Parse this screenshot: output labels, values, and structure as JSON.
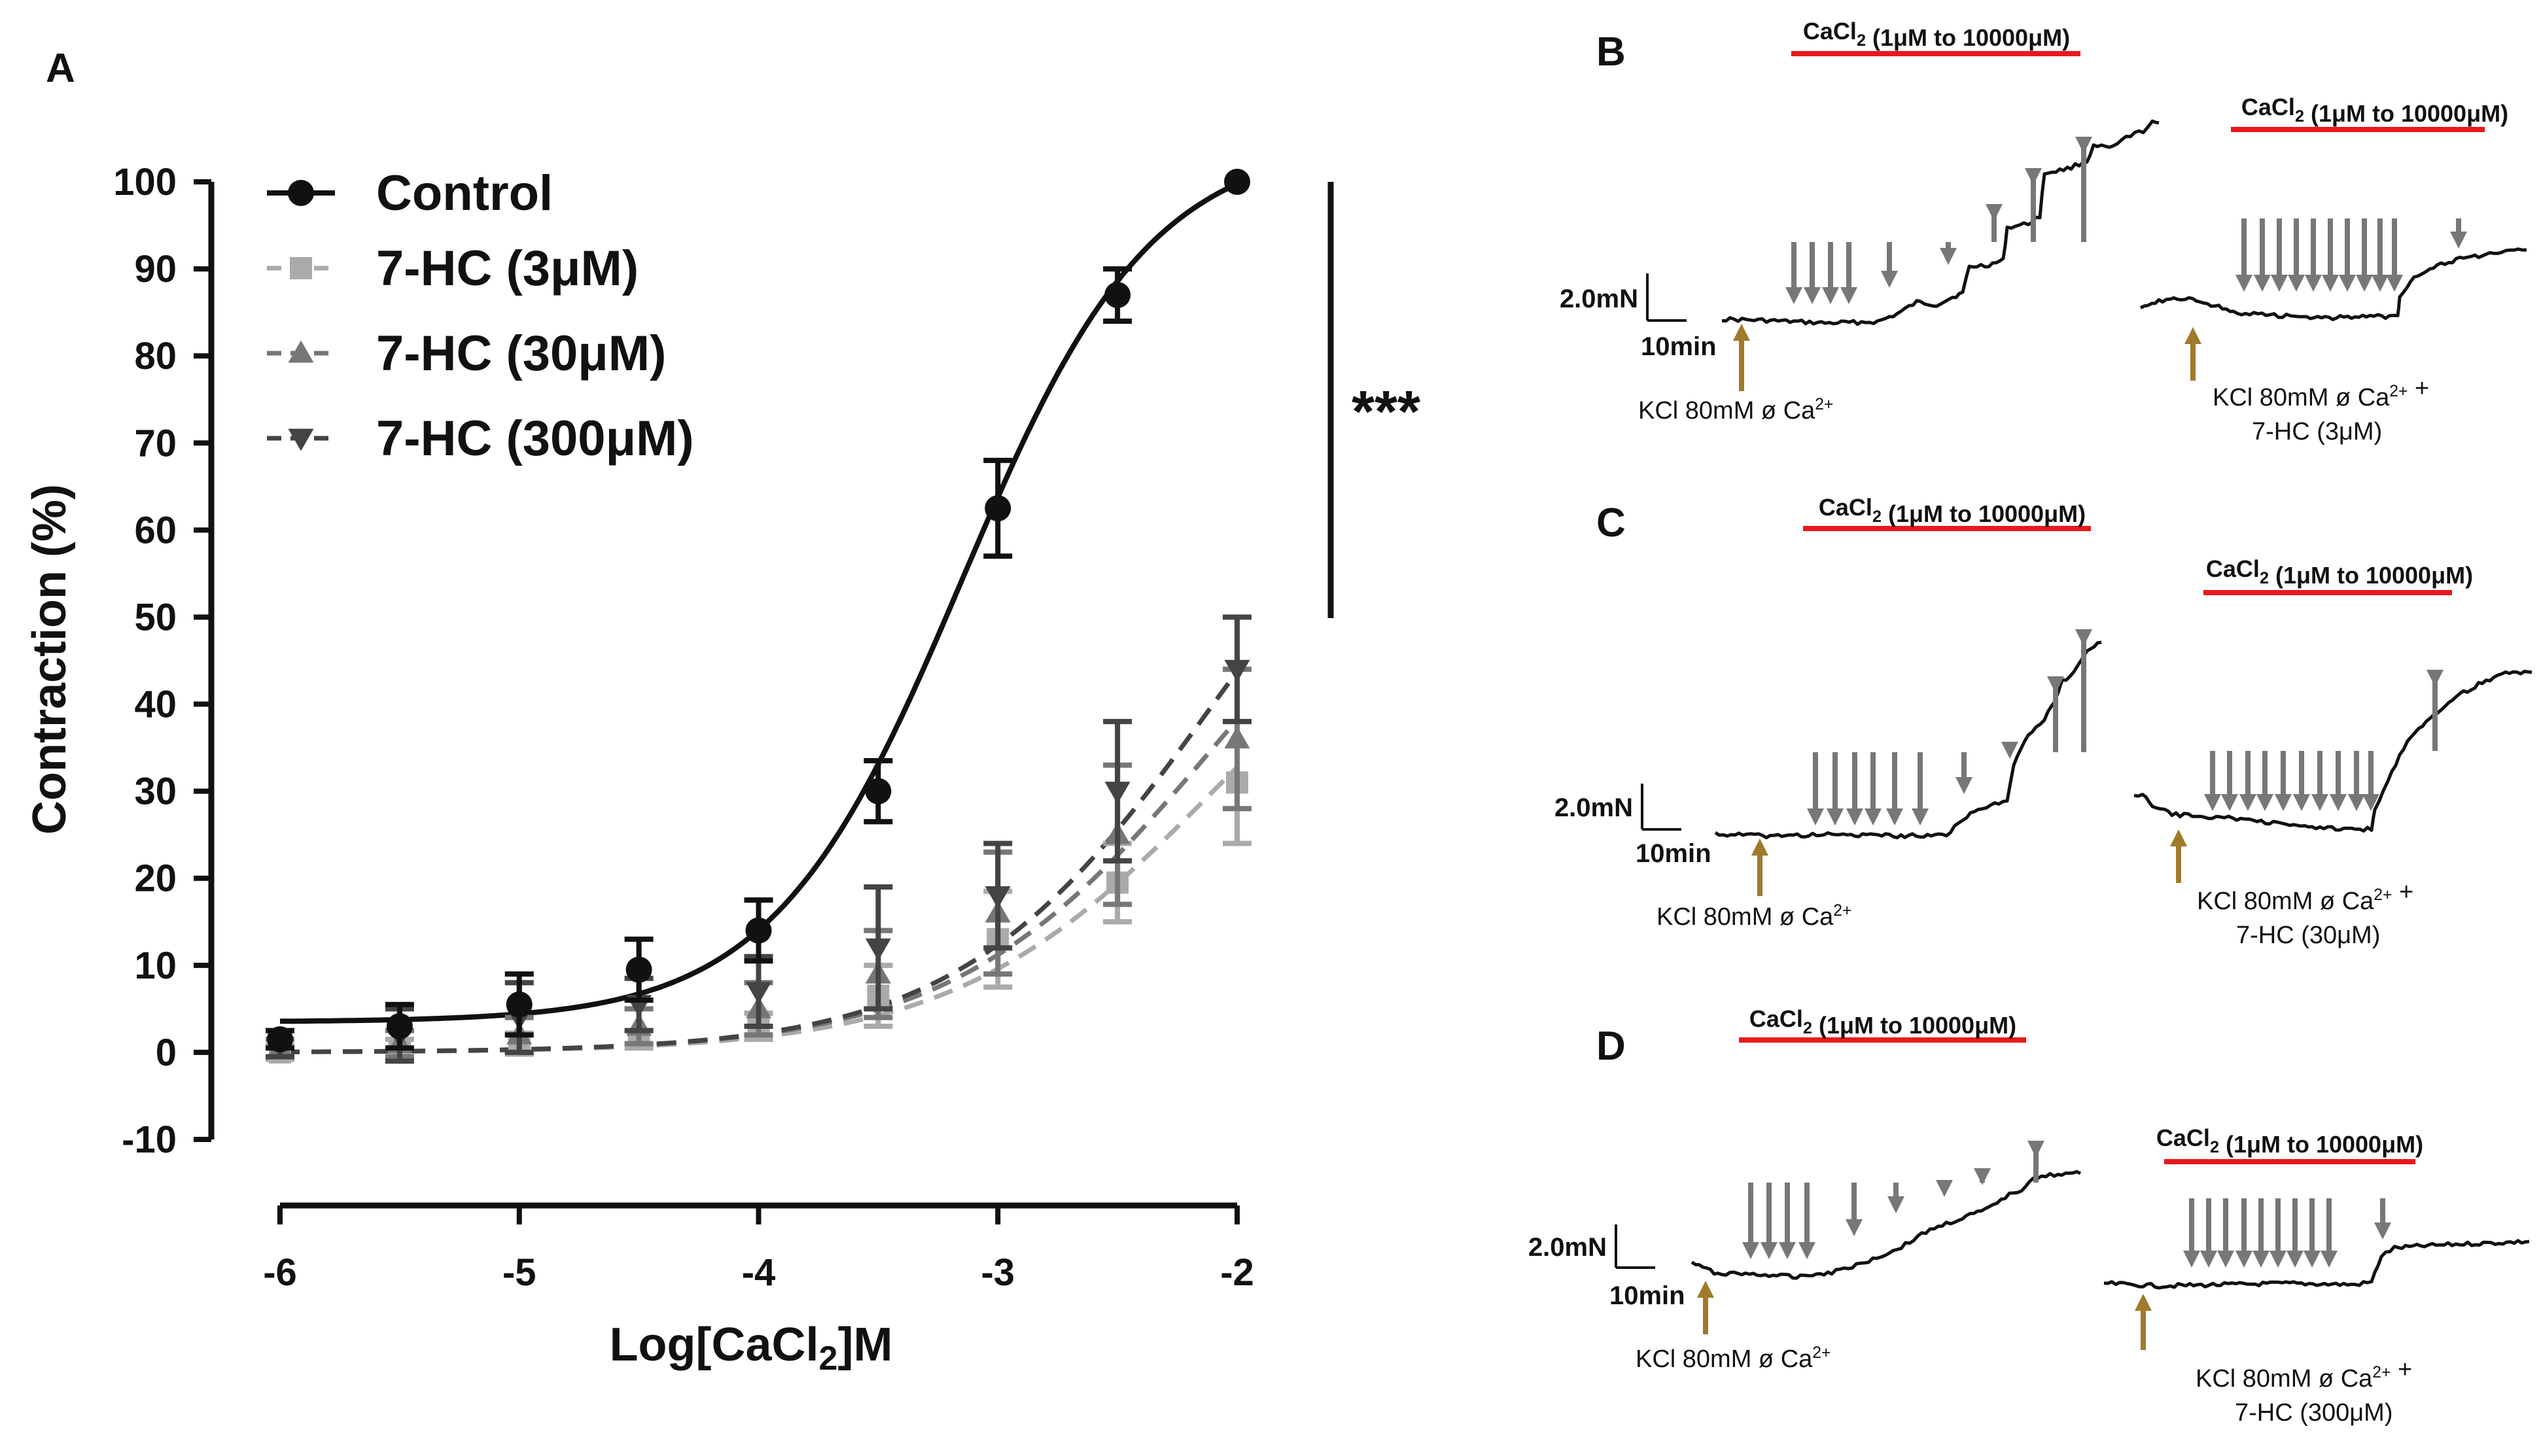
{
  "chart_data": {
    "type": "line",
    "panel_label": "A",
    "title": "",
    "xlabel": "Log[CaCl2]M",
    "ylabel": "Contraction (%)",
    "xlim": [
      -6,
      -2
    ],
    "ylim": [
      -10,
      100
    ],
    "x_ticks": [
      -6,
      -5,
      -4,
      -3,
      -2
    ],
    "y_ticks": [
      -10,
      0,
      10,
      20,
      30,
      40,
      50,
      60,
      70,
      80,
      90,
      100
    ],
    "legend_position": "top-left",
    "significance": "***",
    "series": [
      {
        "name": "Control",
        "marker": "circle",
        "color": "#111111",
        "line": "solid",
        "x": [
          -6,
          -5.5,
          -5,
          -4.5,
          -4,
          -3.5,
          -3,
          -2.5,
          -2
        ],
        "y": [
          1.5,
          3,
          5.5,
          9.5,
          14,
          30,
          62.5,
          87,
          100
        ],
        "err": [
          1,
          2.5,
          3.5,
          3.5,
          3.5,
          3.5,
          5.5,
          3,
          0
        ],
        "fit": {
          "bottom": 3.5,
          "top": 105,
          "logEC50": -3.15,
          "hill": 1.1
        }
      },
      {
        "name": "7-HC (3μM)",
        "marker": "square",
        "color": "#aaaaaa",
        "line": "dashed",
        "x": [
          -6,
          -5.5,
          -5,
          -4.5,
          -4,
          -3.5,
          -3,
          -2.5,
          -2
        ],
        "y": [
          0,
          0.5,
          1,
          1.5,
          3,
          6.5,
          13,
          19.5,
          31
        ],
        "err": [
          0.8,
          1,
          1.2,
          1,
          1.5,
          3.5,
          5.5,
          4.5,
          7
        ],
        "fit": {
          "bottom": 0,
          "top": 60,
          "logEC50": -2.1,
          "hill": 0.8
        }
      },
      {
        "name": "7-HC (30μM)",
        "marker": "triangle-up",
        "color": "#777777",
        "line": "dashed",
        "x": [
          -6,
          -5.5,
          -5,
          -4.5,
          -4,
          -3.5,
          -3,
          -2.5,
          -2
        ],
        "y": [
          0.5,
          1,
          2,
          3,
          5,
          9,
          16,
          25,
          36
        ],
        "err": [
          1,
          1.5,
          2,
          2,
          3,
          5,
          7,
          8,
          8
        ],
        "fit": {
          "bottom": 0,
          "top": 70,
          "logEC50": -2.1,
          "hill": 0.8
        }
      },
      {
        "name": "7-HC (300μM)",
        "marker": "triangle-down",
        "color": "#444444",
        "line": "dashed",
        "x": [
          -6,
          -5.5,
          -5,
          -4.5,
          -4,
          -3.5,
          -3,
          -2.5,
          -2
        ],
        "y": [
          1,
          2,
          4,
          5.5,
          7,
          12,
          18,
          30,
          44
        ],
        "err": [
          1.5,
          3,
          4,
          3,
          4,
          7,
          6,
          8,
          6
        ],
        "fit": {
          "bottom": 0,
          "top": 80,
          "logEC50": -2.1,
          "hill": 0.82
        }
      }
    ]
  },
  "traces": {
    "panels": [
      {
        "letter": "B",
        "scale_force": "2.0mN",
        "scale_time": "10min",
        "left": {
          "bar_label": "CaCl2 (1μM to 10000μM)",
          "kcl_line1": "KCl 80mM ø Ca2+",
          "kcl_line2": ""
        },
        "right": {
          "bar_label": "CaCl2 (1μM to 10000μM)",
          "kcl_line1": "KCl 80mM ø Ca2+ +",
          "kcl_line2": "7-HC (3μM)"
        }
      },
      {
        "letter": "C",
        "scale_force": "2.0mN",
        "scale_time": "10min",
        "left": {
          "bar_label": "CaCl2 (1μM to 10000μM)",
          "kcl_line1": "KCl 80mM ø Ca2+",
          "kcl_line2": ""
        },
        "right": {
          "bar_label": "CaCl2 (1μM to 10000μM)",
          "kcl_line1": "KCl 80mM ø Ca2+ +",
          "kcl_line2": "7-HC (30μM)"
        }
      },
      {
        "letter": "D",
        "scale_force": "2.0mN",
        "scale_time": "10min",
        "left": {
          "bar_label": "CaCl2 (1μM to 10000μM)",
          "kcl_line1": "KCl 80mM ø Ca2+",
          "kcl_line2": ""
        },
        "right": {
          "bar_label": "CaCl2 (1μM to 10000μM)",
          "kcl_line1": "KCl 80mM ø Ca2+ +",
          "kcl_line2": "7-HC (300μM)"
        }
      }
    ]
  },
  "colors": {
    "red_bar": "#e8191c",
    "gold_arrow": "#a07a2a",
    "gray_arrow": "#777777",
    "trace": "#111111"
  }
}
